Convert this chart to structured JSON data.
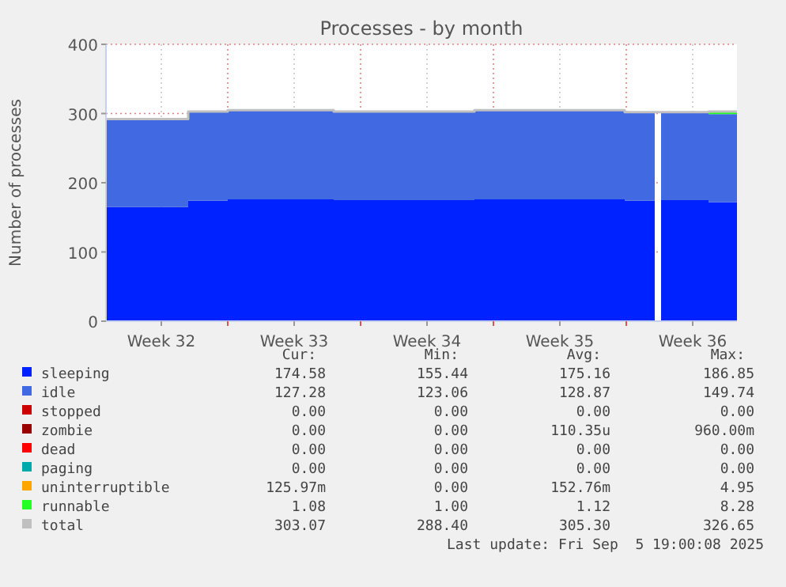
{
  "chart_data": {
    "type": "area",
    "stacked": true,
    "title": "Processes - by month",
    "ylabel": "Number of processes",
    "x": [
      "2025-08-04T14:00",
      "2025-08-08T22:00",
      "2025-08-11T00:00",
      "2025-08-16T14:00",
      "2025-08-24T00:00",
      "2025-08-31T22:00",
      "2025-09-02T12:00",
      "2025-09-02T14:00",
      "2025-09-02T20:00",
      "2025-09-05T08:00",
      "2025-09-06T20:00"
    ],
    "xlim": [
      "2025-08-04T14:00",
      "2025-09-06T20:00"
    ],
    "xticks": [
      {
        "value": "2025-08-07T12:00",
        "label": "Week 32"
      },
      {
        "value": "2025-08-11T00:00",
        "label": null
      },
      {
        "value": "2025-08-14T12:00",
        "label": "Week 33"
      },
      {
        "value": "2025-08-18T00:00",
        "label": null
      },
      {
        "value": "2025-08-21T12:00",
        "label": "Week 34"
      },
      {
        "value": "2025-08-25T00:00",
        "label": null
      },
      {
        "value": "2025-08-28T12:00",
        "label": "Week 35"
      },
      {
        "value": "2025-09-01T00:00",
        "label": null
      },
      {
        "value": "2025-09-04T12:00",
        "label": "Week 36"
      }
    ],
    "ylim": [
      0,
      400
    ],
    "yticks": [
      0,
      100,
      200,
      300,
      400
    ],
    "grid": true,
    "legend": "bottom",
    "series": [
      {
        "name": "sleeping",
        "color": "#0022ff",
        "values": [
          165,
          174,
          176,
          175,
          176,
          174,
          174,
          null,
          175,
          172,
          172
        ]
      },
      {
        "name": "idle",
        "color": "#4169e1",
        "values": [
          127,
          129,
          129,
          128,
          129,
          128,
          128,
          null,
          127,
          127,
          127
        ]
      },
      {
        "name": "stopped",
        "color": "#cc0000",
        "values": [
          null,
          null,
          null,
          null,
          null,
          null,
          null,
          null,
          null,
          null,
          null
        ]
      },
      {
        "name": "zombie",
        "color": "#990000",
        "values": [
          null,
          null,
          null,
          null,
          null,
          null,
          null,
          null,
          null,
          null,
          null
        ]
      },
      {
        "name": "dead",
        "color": "#ff0000",
        "values": [
          null,
          null,
          null,
          null,
          null,
          null,
          null,
          null,
          null,
          null,
          null
        ]
      },
      {
        "name": "paging",
        "color": "#00aaaa",
        "values": [
          null,
          null,
          null,
          null,
          null,
          null,
          null,
          null,
          null,
          null,
          null
        ]
      },
      {
        "name": "uninterruptible",
        "color": "#ffa500",
        "values": [
          null,
          null,
          null,
          null,
          null,
          null,
          null,
          null,
          null,
          null,
          null
        ]
      },
      {
        "name": "runnable",
        "color": "#22ff22",
        "values": [
          null,
          null,
          null,
          null,
          null,
          null,
          null,
          null,
          null,
          4,
          4
        ]
      },
      {
        "name": "total",
        "type": "step",
        "color": "#c0c0c0",
        "values": [
          292,
          303,
          305,
          303,
          305,
          302,
          302,
          302,
          302,
          303,
          303
        ]
      }
    ],
    "annotations": [
      "Cur:",
      "Min:",
      "Avg:",
      "Max:",
      "174.58",
      "155.44",
      "175.16",
      "186.85",
      "127.28",
      "123.06",
      "128.87",
      "149.74",
      "0.00",
      "0.00",
      "0.00",
      "0.00",
      "0.00",
      "0.00",
      "110.35u",
      "960.00m",
      "0.00",
      "0.00",
      "0.00",
      "0.00",
      "0.00",
      "0.00",
      "0.00",
      "0.00",
      "125.97m",
      "0.00",
      "152.76m",
      "4.95",
      "1.08",
      "1.00",
      "1.12",
      "8.28",
      "303.07",
      "288.40",
      "305.30",
      "326.65",
      "Last update: Fri Sep  5 19:00:08 2025"
    ]
  }
}
